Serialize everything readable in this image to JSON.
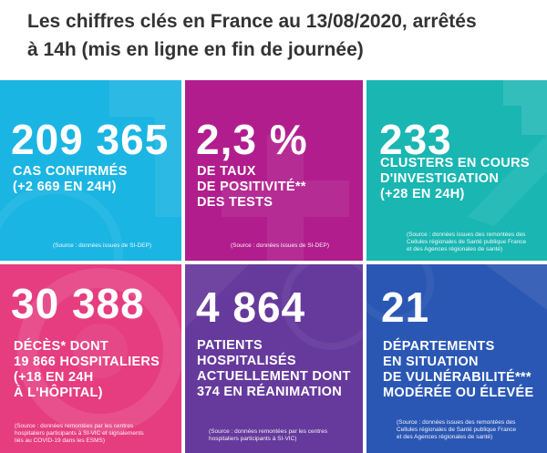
{
  "header": {
    "line1": "Les chiffres clés en France au 13/08/2020, arrêtés",
    "line2": "à 14h (mis en ligne en fin de journée)"
  },
  "tiles": [
    {
      "color": "#1bb5e3",
      "value": "209 365",
      "lines": [
        "CAS CONFIRMÉS",
        "(+2 669 EN 24H)"
      ],
      "source": [
        "(Source : données issues de SI-DEP)"
      ]
    },
    {
      "color": "#b11d8d",
      "value": "2,3 %",
      "lines": [
        "DE TAUX",
        "DE POSITIVITÉ**",
        "DES TESTS"
      ],
      "source": [
        "(Source : données issues de SI-DEP)"
      ]
    },
    {
      "color": "#19b6b2",
      "value": "233",
      "lines": [
        "CLUSTERS EN COURS",
        "D'INVESTIGATION",
        "(+28 EN 24H)"
      ],
      "source": [
        "(Source : données issues des remontées des",
        "Cellules régionales de Santé publique France",
        "et des Agences régionales de santé)"
      ]
    },
    {
      "color": "#e53d80",
      "value": "30 388",
      "lines": [
        "DÉCÈS* DONT",
        "19 866 HOSPITALIERS",
        "(+18 EN 24H",
        "À L'HÔPITAL)"
      ],
      "source": [
        "(Source : données remontées par les centres",
        "hospitaliers participants à SI-VIC et signalements",
        "liés au COVID-19 dans les ESMS)"
      ]
    },
    {
      "color": "#663a9c",
      "value": "4 864",
      "lines": [
        "PATIENTS",
        "HOSPITALISÉS",
        "ACTUELLEMENT DONT",
        "374 EN RÉANIMATION"
      ],
      "source": [
        "(Source : données remontées par les centres",
        "hospitaliers participants à SI-VIC)"
      ]
    },
    {
      "color": "#2b57b4",
      "value": "21",
      "lines": [
        "DÉPARTEMENTS",
        "EN SITUATION",
        "DE VULNÉRABILITÉ***",
        "MODÉRÉE OU ÉLEVÉE"
      ],
      "source": [
        "(Source : données issues des remontées des",
        "Cellules régionales de Santé publique France",
        "et des Agences régionales de santé)"
      ]
    }
  ]
}
